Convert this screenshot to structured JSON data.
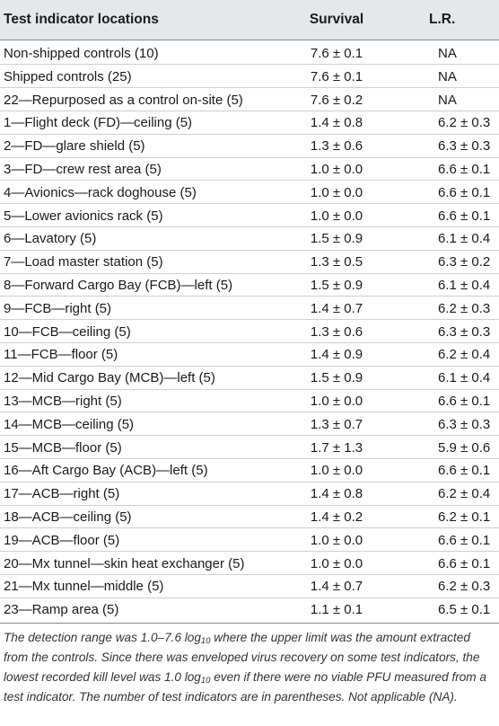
{
  "table": {
    "headers": {
      "location": "Test indicator locations",
      "survival": "Survival",
      "lr": "L.R."
    },
    "rows": [
      {
        "location": "Non-shipped controls (10)",
        "survival": "7.6 ± 0.1",
        "lr": "NA"
      },
      {
        "location": "Shipped controls (25)",
        "survival": "7.6 ± 0.1",
        "lr": "NA"
      },
      {
        "location": "22—Repurposed as a control on-site (5)",
        "survival": "7.6 ± 0.2",
        "lr": "NA"
      },
      {
        "location": "1—Flight deck (FD)—ceiling (5)",
        "survival": "1.4 ± 0.8",
        "lr": "6.2 ± 0.3"
      },
      {
        "location": "2—FD—glare shield (5)",
        "survival": "1.3 ± 0.6",
        "lr": "6.3 ± 0.3"
      },
      {
        "location": "3—FD—crew rest area (5)",
        "survival": "1.0 ± 0.0",
        "lr": "6.6 ± 0.1"
      },
      {
        "location": "4—Avionics—rack doghouse (5)",
        "survival": "1.0 ± 0.0",
        "lr": "6.6 ± 0.1"
      },
      {
        "location": "5—Lower avionics rack (5)",
        "survival": "1.0 ± 0.0",
        "lr": "6.6 ± 0.1"
      },
      {
        "location": "6—Lavatory (5)",
        "survival": "1.5 ± 0.9",
        "lr": "6.1 ± 0.4"
      },
      {
        "location": "7—Load master station (5)",
        "survival": "1.3 ± 0.5",
        "lr": "6.3 ± 0.2"
      },
      {
        "location": "8—Forward Cargo Bay (FCB)—left (5)",
        "survival": "1.5 ± 0.9",
        "lr": "6.1 ± 0.4"
      },
      {
        "location": "9—FCB—right (5)",
        "survival": "1.4 ± 0.7",
        "lr": "6.2 ± 0.3"
      },
      {
        "location": "10—FCB—ceiling (5)",
        "survival": "1.3 ± 0.6",
        "lr": "6.3 ± 0.3"
      },
      {
        "location": "11—FCB—floor (5)",
        "survival": "1.4 ± 0.9",
        "lr": "6.2 ± 0.4"
      },
      {
        "location": "12—Mid Cargo Bay (MCB)—left (5)",
        "survival": "1.5 ± 0.9",
        "lr": "6.1 ± 0.4"
      },
      {
        "location": "13—MCB—right (5)",
        "survival": "1.0 ± 0.0",
        "lr": "6.6 ± 0.1"
      },
      {
        "location": "14—MCB—ceiling (5)",
        "survival": "1.3 ± 0.7",
        "lr": "6.3 ± 0.3"
      },
      {
        "location": "15—MCB—floor (5)",
        "survival": "1.7 ± 1.3",
        "lr": "5.9 ± 0.6"
      },
      {
        "location": "16—Aft Cargo Bay (ACB)—left (5)",
        "survival": "1.0 ± 0.0",
        "lr": "6.6 ± 0.1"
      },
      {
        "location": "17—ACB—right (5)",
        "survival": "1.4 ± 0.8",
        "lr": "6.2 ± 0.4"
      },
      {
        "location": "18—ACB—ceiling (5)",
        "survival": "1.4 ± 0.2",
        "lr": "6.2 ± 0.1"
      },
      {
        "location": "19—ACB—floor (5)",
        "survival": "1.0 ± 0.0",
        "lr": "6.6 ± 0.1"
      },
      {
        "location": "20—Mx tunnel—skin heat exchanger (5)",
        "survival": "1.0 ± 0.0",
        "lr": "6.6 ± 0.1"
      },
      {
        "location": "21—Mx tunnel—middle (5)",
        "survival": "1.4 ± 0.7",
        "lr": "6.2 ± 0.3"
      },
      {
        "location": "23—Ramp area (5)",
        "survival": "1.1 ± 0.1",
        "lr": "6.5 ± 0.1"
      }
    ]
  },
  "footnote": {
    "part1": "The detection range was 1.0–7.6 log",
    "sub1": "10",
    "part2": " where the upper limit was the amount extracted from the controls. Since there was enveloped virus recovery on some test indicators, the lowest recorded kill level was 1.0 log",
    "sub2": "10",
    "part3": " even if there were no viable PFU measured from a test indicator. The number of test indicators are in parentheses. Not applicable (NA)."
  }
}
